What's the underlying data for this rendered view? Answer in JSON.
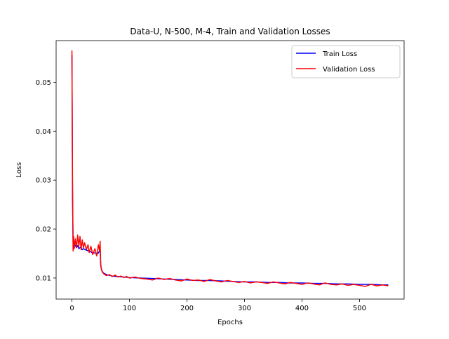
{
  "chart_data": {
    "type": "line",
    "title": "Data-U, N-500, M-4, Train and Validation Losses",
    "xlabel": "Epochs",
    "ylabel": "Loss",
    "xlim": [
      -27.5,
      577.5
    ],
    "ylim": [
      0.0057,
      0.0585
    ],
    "xticks": [
      0,
      100,
      200,
      300,
      400,
      500
    ],
    "yticks": [
      0.01,
      0.02,
      0.03,
      0.04,
      0.05
    ],
    "ytick_labels": [
      "0.01",
      "0.02",
      "0.03",
      "0.04",
      "0.05"
    ],
    "grid": false,
    "legend_position": "top-right",
    "series": [
      {
        "name": "Train Loss",
        "color": "#0000ff",
        "x": [
          0,
          1,
          2,
          3,
          5,
          8,
          10,
          12,
          15,
          18,
          20,
          25,
          30,
          35,
          40,
          45,
          48,
          49,
          50,
          52,
          55,
          60,
          70,
          80,
          90,
          100,
          120,
          140,
          160,
          180,
          200,
          220,
          240,
          260,
          280,
          300,
          320,
          340,
          360,
          380,
          400,
          420,
          440,
          460,
          480,
          500,
          520,
          540,
          550
        ],
        "y": [
          0.0555,
          0.026,
          0.0172,
          0.0165,
          0.0168,
          0.0162,
          0.0166,
          0.016,
          0.0163,
          0.0158,
          0.016,
          0.0157,
          0.0155,
          0.0152,
          0.0151,
          0.015,
          0.0155,
          0.0158,
          0.0125,
          0.0115,
          0.011,
          0.0107,
          0.0104,
          0.0103,
          0.0102,
          0.0101,
          0.01,
          0.0099,
          0.0098,
          0.0097,
          0.0096,
          0.0095,
          0.0095,
          0.0094,
          0.0093,
          0.0092,
          0.0092,
          0.0091,
          0.0091,
          0.009,
          0.009,
          0.0089,
          0.0089,
          0.0088,
          0.0088,
          0.0087,
          0.0087,
          0.0086,
          0.0086
        ]
      },
      {
        "name": "Validation Loss",
        "color": "#ff0000",
        "x": [
          0,
          1,
          2,
          3,
          4,
          6,
          8,
          10,
          12,
          14,
          16,
          18,
          20,
          22,
          25,
          28,
          30,
          33,
          36,
          40,
          43,
          46,
          48,
          49,
          50,
          51,
          53,
          56,
          60,
          65,
          70,
          75,
          80,
          85,
          90,
          95,
          100,
          110,
          120,
          130,
          140,
          150,
          160,
          170,
          180,
          190,
          200,
          210,
          220,
          230,
          240,
          250,
          260,
          270,
          280,
          290,
          300,
          310,
          320,
          330,
          340,
          350,
          360,
          370,
          380,
          390,
          400,
          410,
          420,
          430,
          440,
          450,
          460,
          470,
          480,
          490,
          500,
          510,
          520,
          530,
          540,
          550
        ],
        "y": [
          0.0565,
          0.03,
          0.0155,
          0.0185,
          0.016,
          0.018,
          0.0162,
          0.0188,
          0.0165,
          0.0185,
          0.0158,
          0.0178,
          0.0162,
          0.0172,
          0.0158,
          0.0168,
          0.0152,
          0.0165,
          0.0148,
          0.016,
          0.0145,
          0.0168,
          0.0155,
          0.0175,
          0.013,
          0.0118,
          0.0112,
          0.0108,
          0.0105,
          0.0107,
          0.0103,
          0.0106,
          0.0102,
          0.0104,
          0.0101,
          0.0103,
          0.01,
          0.0102,
          0.0099,
          0.0098,
          0.0096,
          0.01,
          0.0097,
          0.0099,
          0.0096,
          0.0094,
          0.0098,
          0.0095,
          0.0096,
          0.0093,
          0.0097,
          0.0094,
          0.0092,
          0.0095,
          0.0093,
          0.0091,
          0.0093,
          0.009,
          0.0092,
          0.0091,
          0.0089,
          0.0092,
          0.009,
          0.0088,
          0.0091,
          0.0089,
          0.0087,
          0.009,
          0.0088,
          0.0086,
          0.009,
          0.0087,
          0.0086,
          0.0088,
          0.0085,
          0.0087,
          0.0085,
          0.0083,
          0.0087,
          0.0084,
          0.0086,
          0.0084
        ]
      }
    ]
  }
}
